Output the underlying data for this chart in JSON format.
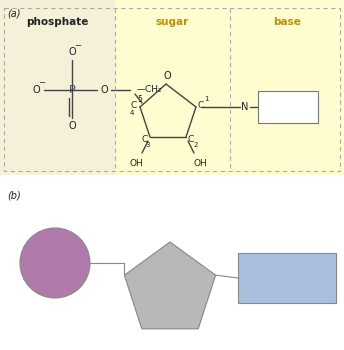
{
  "bg_color": "#ffffff",
  "phosphate_bg": "#f5f0d8",
  "sugar_bg": "#fefdd0",
  "base_bg": "#fefdd0",
  "fig_width": 3.44,
  "fig_height": 3.5,
  "label_a": "(a)",
  "label_b": "(b)",
  "phosphate_label": "phosphate",
  "sugar_label": "sugar",
  "base_label": "base",
  "dash_color": "#aaaaaa",
  "text_color": "#222222",
  "bond_color": "#444444",
  "circle_color": "#b07aaa",
  "pentagon_color": "#b8b8b8",
  "rectangle_color": "#aabfdd",
  "shape_edge_color": "#888888",
  "label_color_yellow": "#c09000"
}
